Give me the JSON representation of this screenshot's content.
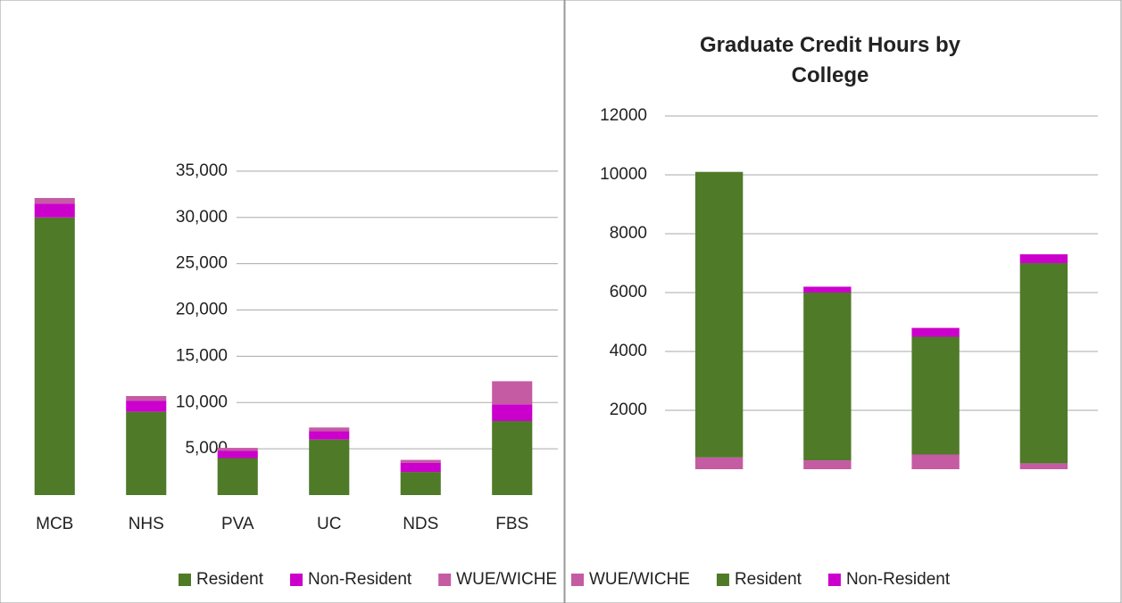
{
  "chart_data": [
    {
      "type": "bar",
      "categories": [
        "MCB",
        "NHS",
        "PVA",
        "UC",
        "NDS",
        "FBS"
      ],
      "series": [
        {
          "name": "Resident",
          "color": "#4f7a28",
          "values": [
            30000,
            9000,
            4000,
            6000,
            2500,
            8000
          ]
        },
        {
          "name": "Non-Resident",
          "color": "#cc00cc",
          "values": [
            1500,
            1200,
            800,
            900,
            1000,
            1800
          ]
        },
        {
          "name": "WUE/WICHE",
          "color": "#c45ba3",
          "values": [
            600,
            500,
            300,
            400,
            300,
            2500
          ]
        }
      ],
      "ylim": [
        0,
        40000
      ],
      "yticks": [
        {
          "value": 5000,
          "label": "5,000"
        },
        {
          "value": 10000,
          "label": "10,000"
        },
        {
          "value": 15000,
          "label": "15,000"
        },
        {
          "value": 20000,
          "label": "20,000"
        },
        {
          "value": 25000,
          "label": "25,000"
        },
        {
          "value": 30000,
          "label": "30,000"
        },
        {
          "value": 35000,
          "label": "35,000"
        }
      ],
      "grid": true
    },
    {
      "type": "bar",
      "title": "Graduate Credit Hours by College",
      "categories": [
        null,
        null,
        null,
        null
      ],
      "series": [
        {
          "name": "WUE/WICHE",
          "color": "#c45ba3",
          "values": [
            400,
            300,
            500,
            200
          ]
        },
        {
          "name": "Resident",
          "color": "#4f7a28",
          "values": [
            9700,
            5700,
            4000,
            6800
          ]
        },
        {
          "name": "Non-Resident",
          "color": "#cc00cc",
          "values": [
            0,
            200,
            300,
            300
          ]
        }
      ],
      "ylim": [
        0,
        12000
      ],
      "yticks": [
        2000,
        4000,
        6000,
        8000,
        10000,
        12000
      ],
      "grid": true
    }
  ]
}
